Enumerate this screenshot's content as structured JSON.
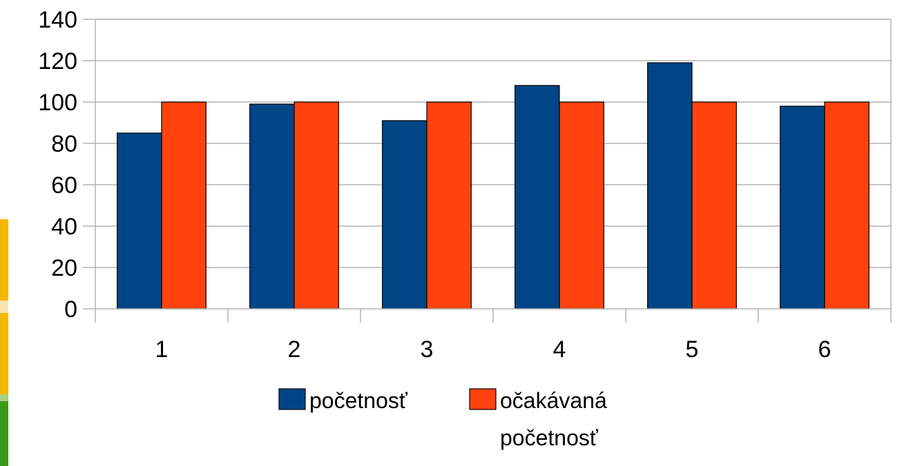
{
  "chart_data": {
    "type": "bar",
    "categories": [
      "1",
      "2",
      "3",
      "4",
      "5",
      "6"
    ],
    "series": [
      {
        "name": "početnosť",
        "values": [
          85,
          99,
          91,
          108,
          119,
          98
        ],
        "color": "#004586"
      },
      {
        "name": "očakávaná početnosť",
        "name_lines": [
          "očakávaná",
          "početnosť"
        ],
        "values": [
          100,
          100,
          100,
          100,
          100,
          100
        ],
        "color": "#ff420e"
      }
    ],
    "ylim": [
      0,
      140
    ],
    "yticks": [
      0,
      20,
      40,
      60,
      80,
      100,
      120,
      140
    ],
    "grid": true,
    "legend_position": "bottom",
    "title": "",
    "xlabel": "",
    "ylabel": ""
  }
}
